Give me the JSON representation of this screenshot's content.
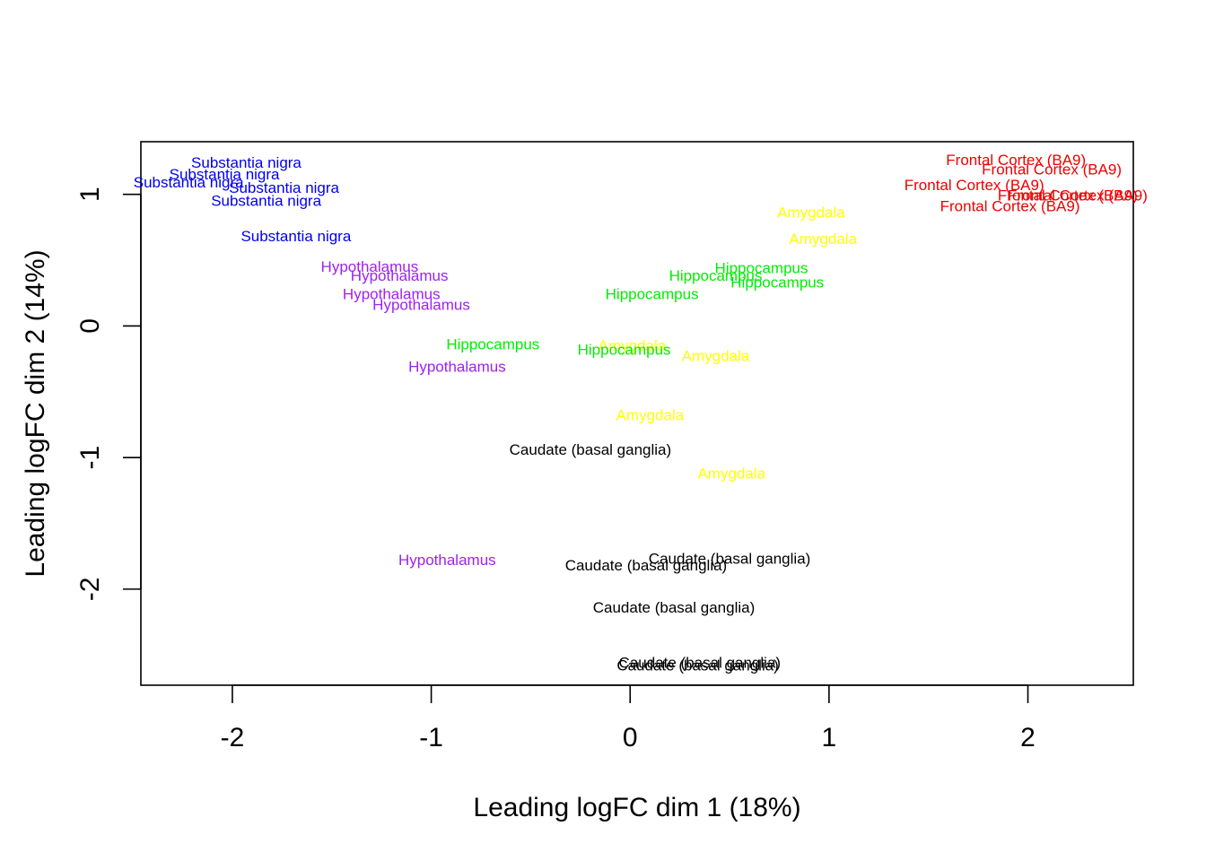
{
  "chart_data": {
    "type": "scatter",
    "title": "",
    "xlabel": "Leading logFC dim 1 (18%)",
    "ylabel": "Leading logFC dim 2 (14%)",
    "xlim": [
      -2.46,
      2.53
    ],
    "ylim": [
      -2.73,
      1.4
    ],
    "xticks": [
      -2,
      -1,
      0,
      1,
      2
    ],
    "yticks": [
      -2,
      -1,
      0,
      1
    ],
    "grid": false,
    "legend": "none",
    "colors": {
      "Substantia nigra": "#0000ee",
      "Frontal Cortex (BA9)": "#ee0000",
      "Amygdala": "#ffff00",
      "Hippocampus": "#00ee00",
      "Hypothalamus": "#a020f0",
      "Caudate (basal ganglia)": "#000000"
    },
    "points": [
      {
        "label": "Substantia nigra",
        "x": -1.93,
        "y": 1.24
      },
      {
        "label": "Substantia nigra",
        "x": -2.04,
        "y": 1.15
      },
      {
        "label": "Substantia nigra",
        "x": -2.22,
        "y": 1.09
      },
      {
        "label": "Substantia nigra",
        "x": -1.74,
        "y": 1.05
      },
      {
        "label": "Substantia nigra",
        "x": -1.83,
        "y": 0.95
      },
      {
        "label": "Substantia nigra",
        "x": -1.68,
        "y": 0.68
      },
      {
        "label": "Frontal Cortex (BA9)",
        "x": 1.94,
        "y": 1.26
      },
      {
        "label": "Frontal Cortex (BA9)",
        "x": 2.12,
        "y": 1.19
      },
      {
        "label": "Frontal Cortex (BA9)",
        "x": 1.73,
        "y": 1.07
      },
      {
        "label": "Frontal Cortex (BA9)",
        "x": 2.2,
        "y": 0.99
      },
      {
        "label": "Frontal Cortex (BA9)",
        "x": 2.25,
        "y": 0.99
      },
      {
        "label": "Frontal Cortex (BA9)",
        "x": 1.91,
        "y": 0.91
      },
      {
        "label": "Amygdala",
        "x": 0.91,
        "y": 0.86
      },
      {
        "label": "Amygdala",
        "x": 0.97,
        "y": 0.66
      },
      {
        "label": "Amygdala",
        "x": 0.01,
        "y": -0.15
      },
      {
        "label": "Amygdala",
        "x": 0.43,
        "y": -0.23
      },
      {
        "label": "Amygdala",
        "x": 0.1,
        "y": -0.68
      },
      {
        "label": "Amygdala",
        "x": 0.51,
        "y": -1.12
      },
      {
        "label": "Hippocampus",
        "x": 0.66,
        "y": 0.44
      },
      {
        "label": "Hippocampus",
        "x": 0.43,
        "y": 0.38
      },
      {
        "label": "Hippocampus",
        "x": 0.74,
        "y": 0.33
      },
      {
        "label": "Hippocampus",
        "x": 0.11,
        "y": 0.24
      },
      {
        "label": "Hippocampus",
        "x": -0.69,
        "y": -0.14
      },
      {
        "label": "Hippocampus",
        "x": -0.03,
        "y": -0.18
      },
      {
        "label": "Hypothalamus",
        "x": -1.31,
        "y": 0.45
      },
      {
        "label": "Hypothalamus",
        "x": -1.16,
        "y": 0.38
      },
      {
        "label": "Hypothalamus",
        "x": -1.2,
        "y": 0.24
      },
      {
        "label": "Hypothalamus",
        "x": -1.05,
        "y": 0.16
      },
      {
        "label": "Hypothalamus",
        "x": -0.87,
        "y": -0.31
      },
      {
        "label": "Hypothalamus",
        "x": -0.92,
        "y": -1.78
      },
      {
        "label": "Caudate (basal ganglia)",
        "x": -0.2,
        "y": -0.94
      },
      {
        "label": "Caudate (basal ganglia)",
        "x": 0.5,
        "y": -1.77
      },
      {
        "label": "Caudate (basal ganglia)",
        "x": 0.08,
        "y": -1.82
      },
      {
        "label": "Caudate (basal ganglia)",
        "x": 0.22,
        "y": -2.14
      },
      {
        "label": "Caudate (basal ganglia)",
        "x": 0.35,
        "y": -2.56
      },
      {
        "label": "Caudate (basal ganglia)",
        "x": 0.34,
        "y": -2.58
      }
    ]
  }
}
